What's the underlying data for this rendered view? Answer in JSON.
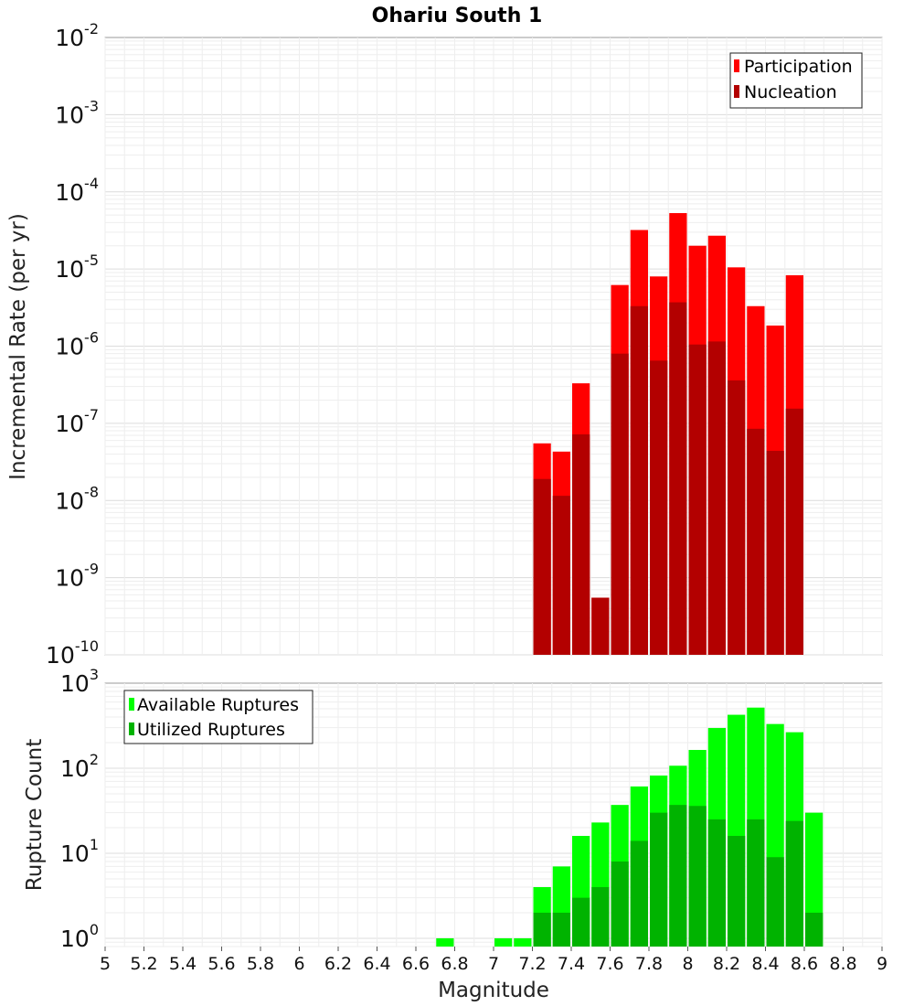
{
  "chart_data": [
    {
      "type": "bar",
      "title": "Ohariu South 1",
      "ylabel": "Incremental Rate (per yr)",
      "xlabel": "",
      "xlim": [
        5,
        9
      ],
      "ylim": [
        1e-10,
        0.01
      ],
      "yscale": "log",
      "ytick_exponents": [
        -10,
        -9,
        -8,
        -7,
        -6,
        -5,
        -4,
        -3,
        -2
      ],
      "legend": "top-right",
      "grid": true,
      "bar_width": 0.1,
      "series": [
        {
          "name": "Participation",
          "color": "#ff0000",
          "x": [
            7.25,
            7.35,
            7.45,
            7.55,
            7.65,
            7.75,
            7.85,
            7.95,
            8.05,
            8.15,
            8.25,
            8.35,
            8.45,
            8.55
          ],
          "values": [
            5.5e-08,
            4.3e-08,
            3.3e-07,
            5.5e-10,
            6.2e-06,
            3.2e-05,
            8e-06,
            5.3e-05,
            2e-05,
            2.7e-05,
            1.05e-05,
            3.3e-06,
            1.85e-06,
            8.3e-06
          ]
        },
        {
          "name": "Nucleation",
          "color": "#b30000",
          "x": [
            7.25,
            7.35,
            7.45,
            7.55,
            7.65,
            7.75,
            7.85,
            7.95,
            8.05,
            8.15,
            8.25,
            8.35,
            8.45,
            8.55
          ],
          "values": [
            1.9e-08,
            1.15e-08,
            7.2e-08,
            5.5e-10,
            8e-07,
            3.3e-06,
            6.5e-07,
            3.7e-06,
            1.05e-06,
            1.15e-06,
            3.6e-07,
            8.5e-08,
            4.4e-08,
            1.55e-07
          ]
        }
      ]
    },
    {
      "type": "bar",
      "title": "",
      "ylabel": "Rupture Count",
      "xlabel": "Magnitude",
      "xlim": [
        5,
        9
      ],
      "ylim": [
        0.8,
        1000
      ],
      "yscale": "log",
      "ytick_exponents": [
        0,
        1,
        2,
        3
      ],
      "xticks": [
        "5",
        "5.2",
        "5.4",
        "5.6",
        "5.8",
        "6",
        "6.2",
        "6.4",
        "6.6",
        "6.8",
        "7",
        "7.2",
        "7.4",
        "7.6",
        "7.8",
        "8",
        "8.2",
        "8.4",
        "8.6",
        "8.8",
        "9"
      ],
      "legend": "top-left",
      "grid": true,
      "bar_width": 0.1,
      "series": [
        {
          "name": "Available Ruptures",
          "color": "#00ff00",
          "x": [
            6.75,
            7.05,
            7.15,
            7.25,
            7.35,
            7.45,
            7.55,
            7.65,
            7.75,
            7.85,
            7.95,
            8.05,
            8.15,
            8.25,
            8.35,
            8.45,
            8.55,
            8.65
          ],
          "values": [
            1,
            1,
            1,
            4,
            7,
            16,
            23,
            37,
            61,
            82,
            107,
            164,
            297,
            425,
            516,
            331,
            265,
            30
          ]
        },
        {
          "name": "Utilized Ruptures",
          "color": "#00b300",
          "x": [
            7.25,
            7.35,
            7.45,
            7.55,
            7.65,
            7.75,
            7.85,
            7.95,
            8.05,
            8.15,
            8.25,
            8.35,
            8.45,
            8.55,
            8.65
          ],
          "values": [
            2,
            2,
            3,
            4,
            8,
            14,
            30,
            37,
            36,
            25,
            16,
            25,
            9,
            24,
            2
          ]
        }
      ]
    }
  ]
}
